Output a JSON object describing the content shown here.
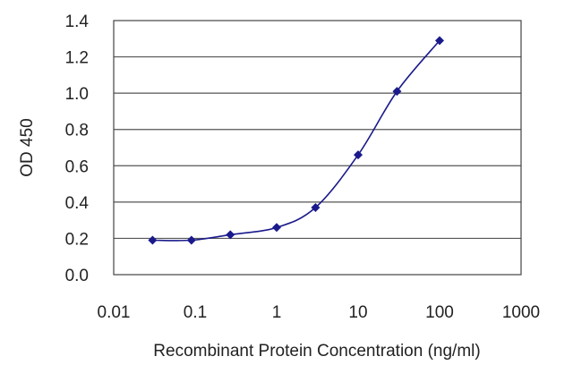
{
  "chart_data": {
    "type": "line",
    "title": "",
    "xlabel": "Recombinant Protein Concentration (ng/ml)",
    "ylabel": "OD 450",
    "x_scale": "log",
    "xlim": [
      0.01,
      1000
    ],
    "ylim": [
      0.0,
      1.4
    ],
    "x_ticks": [
      0.01,
      0.1,
      1,
      10,
      100,
      1000
    ],
    "x_tick_labels": [
      "0.01",
      "0.1",
      "1",
      "10",
      "100",
      "1000"
    ],
    "y_ticks": [
      0.0,
      0.2,
      0.4,
      0.6,
      0.8,
      1.0,
      1.2,
      1.4
    ],
    "y_tick_labels": [
      "0.0",
      "0.2",
      "0.4",
      "0.6",
      "0.8",
      "1.0",
      "1.2",
      "1.4"
    ],
    "grid": "horizontal",
    "series": [
      {
        "x": [
          0.03,
          0.09,
          0.27,
          1,
          3,
          10,
          30,
          100
        ],
        "y": [
          0.19,
          0.19,
          0.22,
          0.26,
          0.37,
          0.66,
          1.01,
          1.29
        ]
      }
    ],
    "colors": {
      "series": "#1a1a8c",
      "grid": "#555555",
      "axis": "#444444"
    }
  }
}
